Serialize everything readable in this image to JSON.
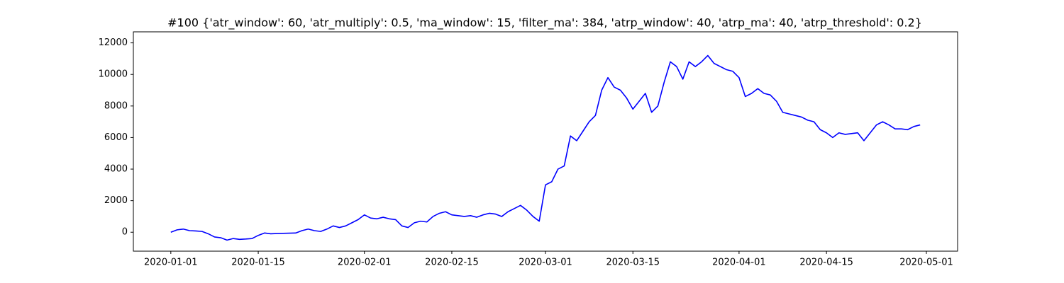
{
  "chart_data": {
    "type": "line",
    "title": "#100 {'atr_window': 60, 'atr_multiply': 0.5, 'ma_window': 15, 'filter_ma': 384, 'atrp_window': 40, 'atrp_ma': 40, 'atrp_threshold': 0.2}",
    "x": [
      "2020-01-01",
      "2020-01-02",
      "2020-01-03",
      "2020-01-04",
      "2020-01-05",
      "2020-01-06",
      "2020-01-07",
      "2020-01-08",
      "2020-01-09",
      "2020-01-10",
      "2020-01-11",
      "2020-01-12",
      "2020-01-13",
      "2020-01-14",
      "2020-01-15",
      "2020-01-16",
      "2020-01-17",
      "2020-01-18",
      "2020-01-19",
      "2020-01-20",
      "2020-01-21",
      "2020-01-22",
      "2020-01-23",
      "2020-01-24",
      "2020-01-25",
      "2020-01-26",
      "2020-01-27",
      "2020-01-28",
      "2020-01-29",
      "2020-01-30",
      "2020-01-31",
      "2020-02-01",
      "2020-02-02",
      "2020-02-03",
      "2020-02-04",
      "2020-02-05",
      "2020-02-06",
      "2020-02-07",
      "2020-02-08",
      "2020-02-09",
      "2020-02-10",
      "2020-02-11",
      "2020-02-12",
      "2020-02-13",
      "2020-02-14",
      "2020-02-15",
      "2020-02-16",
      "2020-02-17",
      "2020-02-18",
      "2020-02-19",
      "2020-02-20",
      "2020-02-21",
      "2020-02-22",
      "2020-02-23",
      "2020-02-24",
      "2020-02-25",
      "2020-02-26",
      "2020-02-27",
      "2020-02-28",
      "2020-02-29",
      "2020-03-01",
      "2020-03-02",
      "2020-03-03",
      "2020-03-04",
      "2020-03-05",
      "2020-03-06",
      "2020-03-07",
      "2020-03-08",
      "2020-03-09",
      "2020-03-10",
      "2020-03-11",
      "2020-03-12",
      "2020-03-13",
      "2020-03-14",
      "2020-03-15",
      "2020-03-16",
      "2020-03-17",
      "2020-03-18",
      "2020-03-19",
      "2020-03-20",
      "2020-03-21",
      "2020-03-22",
      "2020-03-23",
      "2020-03-24",
      "2020-03-25",
      "2020-03-26",
      "2020-03-27",
      "2020-03-28",
      "2020-03-29",
      "2020-03-30",
      "2020-03-31",
      "2020-04-01",
      "2020-04-02",
      "2020-04-03",
      "2020-04-04",
      "2020-04-05",
      "2020-04-06",
      "2020-04-07",
      "2020-04-08",
      "2020-04-09",
      "2020-04-10",
      "2020-04-11",
      "2020-04-12",
      "2020-04-13",
      "2020-04-14",
      "2020-04-15",
      "2020-04-16",
      "2020-04-17",
      "2020-04-18",
      "2020-04-19",
      "2020-04-20",
      "2020-04-21",
      "2020-04-22",
      "2020-04-23",
      "2020-04-24",
      "2020-04-25",
      "2020-04-26",
      "2020-04-27",
      "2020-04-28",
      "2020-04-29",
      "2020-04-30"
    ],
    "series": [
      {
        "color": "#0000ff",
        "values": [
          0,
          150,
          200,
          100,
          80,
          50,
          -100,
          -300,
          -350,
          -500,
          -400,
          -450,
          -430,
          -400,
          -200,
          -50,
          -100,
          -80,
          -70,
          -60,
          -50,
          100,
          200,
          100,
          50,
          200,
          400,
          300,
          400,
          600,
          800,
          1100,
          900,
          850,
          950,
          850,
          800,
          400,
          300,
          600,
          700,
          650,
          1000,
          1200,
          1300,
          1100,
          1050,
          1000,
          1050,
          950,
          1100,
          1200,
          1150,
          1000,
          1300,
          1500,
          1700,
          1400,
          1000,
          700,
          3000,
          3200,
          4000,
          4200,
          6100,
          5800,
          6400,
          7000,
          7400,
          9000,
          9800,
          9200,
          9000,
          8500,
          7800,
          8300,
          8800,
          7600,
          8000,
          9500,
          10800,
          10500,
          9700,
          10800,
          10500,
          10800,
          11200,
          10700,
          10500,
          10300,
          10200,
          9800,
          8600,
          8800,
          9100,
          8800,
          8700,
          8300,
          7600,
          7500,
          7400,
          7300,
          7100,
          7000,
          6500,
          6300,
          6000,
          6300,
          6200,
          6250,
          6300,
          5800,
          6300,
          6800,
          7000,
          6800,
          6550,
          6550,
          6500,
          6700,
          6800
        ]
      }
    ],
    "xlim": [
      "2019-12-26",
      "2020-05-06"
    ],
    "xticks": [
      "2020-01-01",
      "2020-01-15",
      "2020-02-01",
      "2020-02-15",
      "2020-03-01",
      "2020-03-15",
      "2020-04-01",
      "2020-04-15",
      "2020-05-01"
    ],
    "ylim": [
      -1200,
      12700
    ],
    "yticks": [
      0,
      2000,
      4000,
      6000,
      8000,
      10000,
      12000
    ],
    "grid": false
  }
}
